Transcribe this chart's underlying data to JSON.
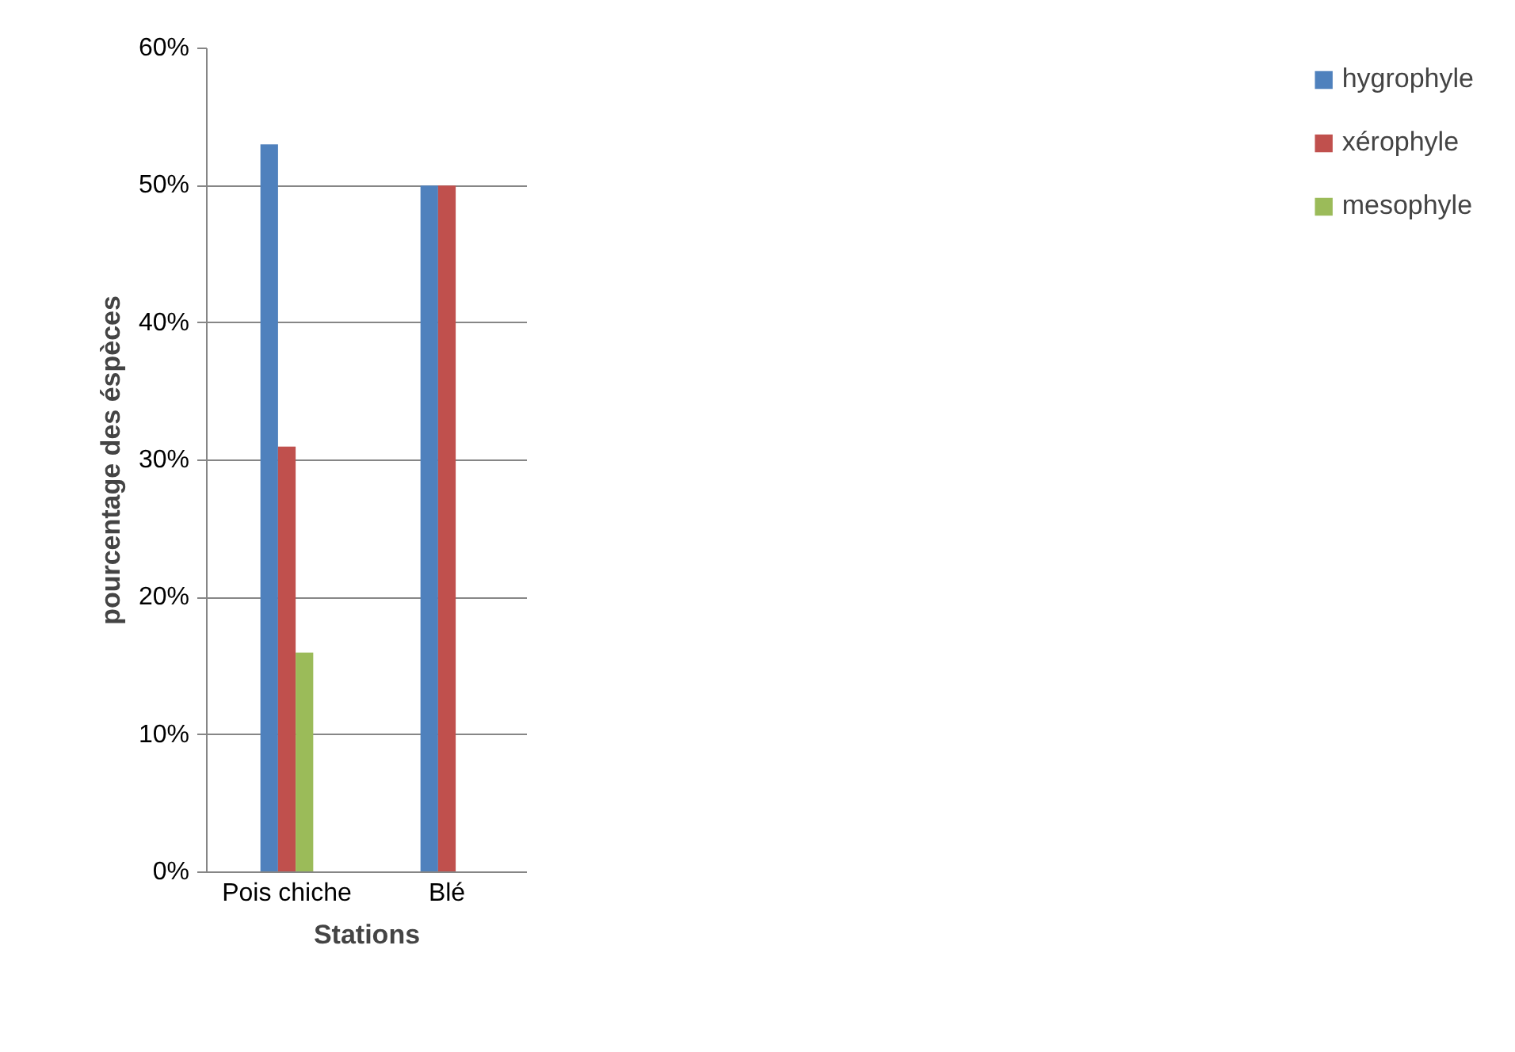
{
  "chart_data": {
    "type": "bar",
    "xlabel": "Stations",
    "ylabel": "pourcentage des éspèces",
    "categories": [
      "Pois chiche",
      "Blé"
    ],
    "series": [
      {
        "name": "hygrophyle",
        "color": "#4f81bd",
        "values": [
          53,
          50
        ]
      },
      {
        "name": "xérophyle",
        "color": "#c0504d",
        "values": [
          31,
          50
        ]
      },
      {
        "name": "mesophyle",
        "color": "#9bbb59",
        "values": [
          16,
          0
        ]
      }
    ],
    "ylim": [
      0,
      60
    ],
    "yticks": [
      {
        "value": 0,
        "label": "0%"
      },
      {
        "value": 10,
        "label": "10%"
      },
      {
        "value": 20,
        "label": "20%"
      },
      {
        "value": 30,
        "label": "30%"
      },
      {
        "value": 40,
        "label": "40%"
      },
      {
        "value": 50,
        "label": "50%"
      },
      {
        "value": 60,
        "label": "60%"
      }
    ],
    "grid": "y",
    "legend": "right"
  }
}
